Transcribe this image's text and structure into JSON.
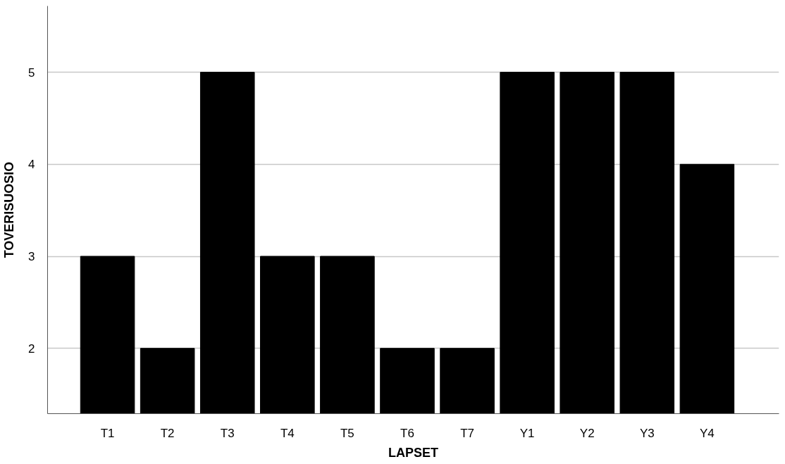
{
  "chart_data": {
    "type": "bar",
    "xlabel": "LAPSET",
    "ylabel": "TOVERISUOSIO",
    "categories": [
      "T1",
      "T2",
      "T3",
      "T4",
      "T5",
      "T6",
      "T7",
      "Y1",
      "Y2",
      "Y3",
      "Y4"
    ],
    "values": [
      3,
      2,
      5,
      3,
      3,
      2,
      2,
      5,
      5,
      5,
      4
    ],
    "color": "#000000",
    "ylim": [
      1.29,
      5.72
    ],
    "yticks": [
      2,
      3,
      4,
      5
    ],
    "grid": "y"
  }
}
